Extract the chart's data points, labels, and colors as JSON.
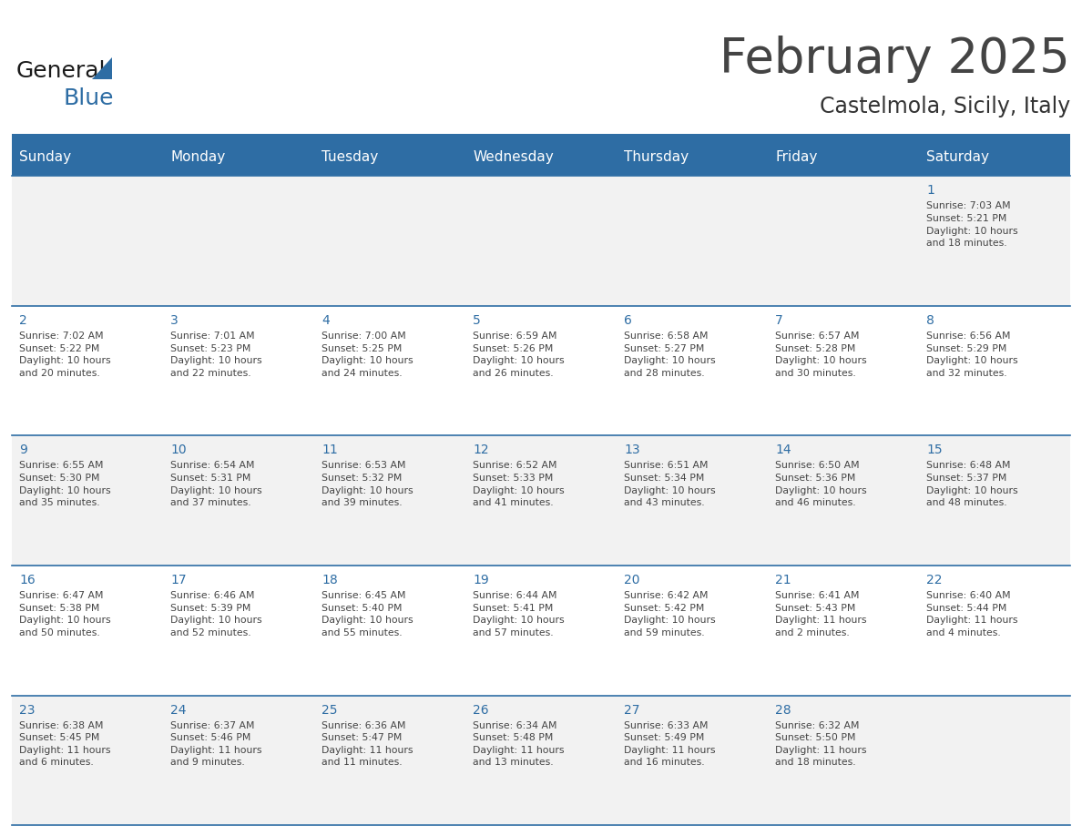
{
  "title": "February 2025",
  "subtitle": "Castelmola, Sicily, Italy",
  "header_bg": "#2E6DA4",
  "header_text_color": "#FFFFFF",
  "cell_bg_odd": "#F2F2F2",
  "cell_bg_even": "#FFFFFF",
  "cell_text_color": "#444444",
  "day_num_color": "#2E6DA4",
  "line_color": "#2E6DA4",
  "days_of_week": [
    "Sunday",
    "Monday",
    "Tuesday",
    "Wednesday",
    "Thursday",
    "Friday",
    "Saturday"
  ],
  "calendar_data": [
    [
      null,
      null,
      null,
      null,
      null,
      null,
      {
        "day": "1",
        "sunrise": "Sunrise: 7:03 AM",
        "sunset": "Sunset: 5:21 PM",
        "daylight": "Daylight: 10 hours\nand 18 minutes."
      }
    ],
    [
      {
        "day": "2",
        "sunrise": "Sunrise: 7:02 AM",
        "sunset": "Sunset: 5:22 PM",
        "daylight": "Daylight: 10 hours\nand 20 minutes."
      },
      {
        "day": "3",
        "sunrise": "Sunrise: 7:01 AM",
        "sunset": "Sunset: 5:23 PM",
        "daylight": "Daylight: 10 hours\nand 22 minutes."
      },
      {
        "day": "4",
        "sunrise": "Sunrise: 7:00 AM",
        "sunset": "Sunset: 5:25 PM",
        "daylight": "Daylight: 10 hours\nand 24 minutes."
      },
      {
        "day": "5",
        "sunrise": "Sunrise: 6:59 AM",
        "sunset": "Sunset: 5:26 PM",
        "daylight": "Daylight: 10 hours\nand 26 minutes."
      },
      {
        "day": "6",
        "sunrise": "Sunrise: 6:58 AM",
        "sunset": "Sunset: 5:27 PM",
        "daylight": "Daylight: 10 hours\nand 28 minutes."
      },
      {
        "day": "7",
        "sunrise": "Sunrise: 6:57 AM",
        "sunset": "Sunset: 5:28 PM",
        "daylight": "Daylight: 10 hours\nand 30 minutes."
      },
      {
        "day": "8",
        "sunrise": "Sunrise: 6:56 AM",
        "sunset": "Sunset: 5:29 PM",
        "daylight": "Daylight: 10 hours\nand 32 minutes."
      }
    ],
    [
      {
        "day": "9",
        "sunrise": "Sunrise: 6:55 AM",
        "sunset": "Sunset: 5:30 PM",
        "daylight": "Daylight: 10 hours\nand 35 minutes."
      },
      {
        "day": "10",
        "sunrise": "Sunrise: 6:54 AM",
        "sunset": "Sunset: 5:31 PM",
        "daylight": "Daylight: 10 hours\nand 37 minutes."
      },
      {
        "day": "11",
        "sunrise": "Sunrise: 6:53 AM",
        "sunset": "Sunset: 5:32 PM",
        "daylight": "Daylight: 10 hours\nand 39 minutes."
      },
      {
        "day": "12",
        "sunrise": "Sunrise: 6:52 AM",
        "sunset": "Sunset: 5:33 PM",
        "daylight": "Daylight: 10 hours\nand 41 minutes."
      },
      {
        "day": "13",
        "sunrise": "Sunrise: 6:51 AM",
        "sunset": "Sunset: 5:34 PM",
        "daylight": "Daylight: 10 hours\nand 43 minutes."
      },
      {
        "day": "14",
        "sunrise": "Sunrise: 6:50 AM",
        "sunset": "Sunset: 5:36 PM",
        "daylight": "Daylight: 10 hours\nand 46 minutes."
      },
      {
        "day": "15",
        "sunrise": "Sunrise: 6:48 AM",
        "sunset": "Sunset: 5:37 PM",
        "daylight": "Daylight: 10 hours\nand 48 minutes."
      }
    ],
    [
      {
        "day": "16",
        "sunrise": "Sunrise: 6:47 AM",
        "sunset": "Sunset: 5:38 PM",
        "daylight": "Daylight: 10 hours\nand 50 minutes."
      },
      {
        "day": "17",
        "sunrise": "Sunrise: 6:46 AM",
        "sunset": "Sunset: 5:39 PM",
        "daylight": "Daylight: 10 hours\nand 52 minutes."
      },
      {
        "day": "18",
        "sunrise": "Sunrise: 6:45 AM",
        "sunset": "Sunset: 5:40 PM",
        "daylight": "Daylight: 10 hours\nand 55 minutes."
      },
      {
        "day": "19",
        "sunrise": "Sunrise: 6:44 AM",
        "sunset": "Sunset: 5:41 PM",
        "daylight": "Daylight: 10 hours\nand 57 minutes."
      },
      {
        "day": "20",
        "sunrise": "Sunrise: 6:42 AM",
        "sunset": "Sunset: 5:42 PM",
        "daylight": "Daylight: 10 hours\nand 59 minutes."
      },
      {
        "day": "21",
        "sunrise": "Sunrise: 6:41 AM",
        "sunset": "Sunset: 5:43 PM",
        "daylight": "Daylight: 11 hours\nand 2 minutes."
      },
      {
        "day": "22",
        "sunrise": "Sunrise: 6:40 AM",
        "sunset": "Sunset: 5:44 PM",
        "daylight": "Daylight: 11 hours\nand 4 minutes."
      }
    ],
    [
      {
        "day": "23",
        "sunrise": "Sunrise: 6:38 AM",
        "sunset": "Sunset: 5:45 PM",
        "daylight": "Daylight: 11 hours\nand 6 minutes."
      },
      {
        "day": "24",
        "sunrise": "Sunrise: 6:37 AM",
        "sunset": "Sunset: 5:46 PM",
        "daylight": "Daylight: 11 hours\nand 9 minutes."
      },
      {
        "day": "25",
        "sunrise": "Sunrise: 6:36 AM",
        "sunset": "Sunset: 5:47 PM",
        "daylight": "Daylight: 11 hours\nand 11 minutes."
      },
      {
        "day": "26",
        "sunrise": "Sunrise: 6:34 AM",
        "sunset": "Sunset: 5:48 PM",
        "daylight": "Daylight: 11 hours\nand 13 minutes."
      },
      {
        "day": "27",
        "sunrise": "Sunrise: 6:33 AM",
        "sunset": "Sunset: 5:49 PM",
        "daylight": "Daylight: 11 hours\nand 16 minutes."
      },
      {
        "day": "28",
        "sunrise": "Sunrise: 6:32 AM",
        "sunset": "Sunset: 5:50 PM",
        "daylight": "Daylight: 11 hours\nand 18 minutes."
      },
      null
    ]
  ],
  "logo_text1": "General",
  "logo_text2": "Blue",
  "logo_text1_color": "#1a1a1a",
  "logo_text2_color": "#2E6DA4",
  "logo_triangle_color": "#2E6DA4",
  "title_fontsize": 38,
  "subtitle_fontsize": 17,
  "header_fontsize": 11,
  "day_num_fontsize": 10,
  "cell_text_fontsize": 7.8,
  "fig_bg": "#FFFFFF",
  "fig_width": 11.88,
  "fig_height": 9.18
}
